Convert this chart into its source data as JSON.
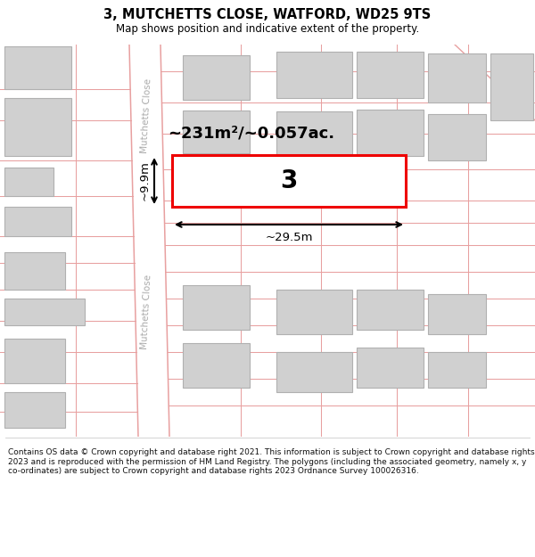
{
  "title_line1": "3, MUTCHETTS CLOSE, WATFORD, WD25 9TS",
  "title_line2": "Map shows position and indicative extent of the property.",
  "footer_text": "Contains OS data © Crown copyright and database right 2021. This information is subject to Crown copyright and database rights 2023 and is reproduced with the permission of HM Land Registry. The polygons (including the associated geometry, namely x, y co-ordinates) are subject to Crown copyright and database rights 2023 Ordnance Survey 100026316.",
  "bg_color": "#ffffff",
  "map_bg": "#f7f7f7",
  "road_stroke": "#e8a0a0",
  "building_fill": "#d0d0d0",
  "building_stroke": "#b0b0b0",
  "highlight_stroke": "#ee0000",
  "dim_color": "#000000",
  "area_text": "~231m²/~0.057ac.",
  "property_label": "3",
  "dim_width": "~29.5m",
  "dim_height": "~9.9m",
  "road_label": "Mutchetts Close"
}
